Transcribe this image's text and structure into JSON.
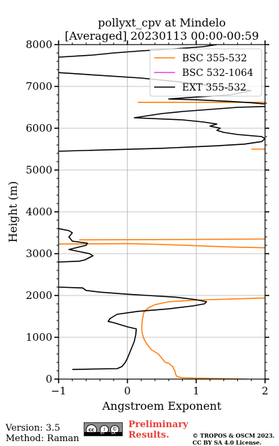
{
  "chart_data": {
    "type": "line",
    "title_line1": "pollyxt_cpv at Mindelo",
    "title_line2": "[Averaged] 20230113 00:00-00:59",
    "xlabel": "Angstroem Exponent",
    "ylabel": "Height (m)",
    "xlim": [
      -1,
      2
    ],
    "ylim": [
      0,
      8000
    ],
    "xticks": [
      -1,
      0,
      1,
      2
    ],
    "yticks": [
      0,
      1000,
      2000,
      3000,
      4000,
      5000,
      6000,
      7000,
      8000
    ],
    "grid": true,
    "legend_position": "top-right",
    "series": [
      {
        "name": "BSC 355-532",
        "color": "#ff7f0e",
        "segments": [
          [
            [
              1.75,
              0
            ],
            [
              1.2,
              15
            ],
            [
              0.8,
              30
            ],
            [
              0.72,
              60
            ],
            [
              0.7,
              120
            ],
            [
              0.69,
              200
            ],
            [
              0.67,
              250
            ],
            [
              0.66,
              300
            ],
            [
              0.62,
              350
            ],
            [
              0.6,
              380
            ],
            [
              0.55,
              400
            ],
            [
              0.5,
              500
            ],
            [
              0.45,
              600
            ],
            [
              0.35,
              700
            ],
            [
              0.3,
              800
            ],
            [
              0.26,
              900
            ],
            [
              0.23,
              1000
            ],
            [
              0.21,
              1150
            ],
            [
              0.21,
              1300
            ],
            [
              0.22,
              1450
            ],
            [
              0.24,
              1600
            ],
            [
              0.3,
              1700
            ],
            [
              0.4,
              1780
            ],
            [
              0.6,
              1850
            ],
            [
              0.9,
              1880
            ],
            [
              1.2,
              1900
            ],
            [
              1.6,
              1920
            ],
            [
              2.0,
              1940
            ]
          ],
          [
            [
              -1.0,
              3230
            ],
            [
              -0.4,
              3235
            ],
            [
              0.0,
              3240
            ],
            [
              0.5,
              3220
            ],
            [
              1.0,
              3190
            ],
            [
              1.5,
              3160
            ],
            [
              2.0,
              3140
            ]
          ],
          [
            [
              -0.7,
              3330
            ],
            [
              0.0,
              3335
            ],
            [
              1.0,
              3340
            ],
            [
              2.0,
              3350
            ]
          ],
          [
            [
              1.8,
              5500
            ],
            [
              1.9,
              5500
            ],
            [
              2.0,
              5500
            ]
          ],
          [
            [
              0.15,
              6620
            ],
            [
              0.6,
              6620
            ],
            [
              1.2,
              6620
            ],
            [
              1.8,
              6620
            ],
            [
              2.0,
              6620
            ]
          ]
        ]
      },
      {
        "name": "BSC 532-1064",
        "color": "#e040e0",
        "segments": []
      },
      {
        "name": "EXT 355-532",
        "color": "#000000",
        "segments": [
          [
            [
              -0.8,
              230
            ],
            [
              -0.5,
              240
            ],
            [
              -0.15,
              250
            ],
            [
              -0.08,
              300
            ],
            [
              -0.03,
              400
            ],
            [
              0.0,
              500
            ],
            [
              0.05,
              700
            ],
            [
              0.1,
              900
            ],
            [
              0.12,
              1050
            ],
            [
              0.13,
              1200
            ],
            [
              0.0,
              1250
            ],
            [
              -0.2,
              1350
            ],
            [
              -0.28,
              1380
            ],
            [
              -0.25,
              1450
            ],
            [
              -0.15,
              1550
            ],
            [
              0.15,
              1620
            ],
            [
              0.6,
              1680
            ],
            [
              0.95,
              1750
            ],
            [
              1.12,
              1800
            ],
            [
              1.15,
              1850
            ],
            [
              1.0,
              1900
            ],
            [
              0.7,
              1960
            ],
            [
              0.3,
              2000
            ],
            [
              0.0,
              2030
            ],
            [
              -0.4,
              2080
            ],
            [
              -0.6,
              2120
            ],
            [
              -0.65,
              2180
            ],
            [
              -1.0,
              2200
            ]
          ],
          [
            [
              -1.0,
              2800
            ],
            [
              -0.7,
              2820
            ],
            [
              -0.62,
              2850
            ],
            [
              -0.5,
              2950
            ],
            [
              -0.55,
              3000
            ],
            [
              -0.7,
              3050
            ],
            [
              -0.85,
              3100
            ],
            [
              -0.6,
              3200
            ],
            [
              -0.58,
              3250
            ],
            [
              -0.8,
              3300
            ],
            [
              -0.85,
              3400
            ],
            [
              -0.8,
              3500
            ],
            [
              -0.85,
              3550
            ],
            [
              -1.0,
              3600
            ]
          ],
          [
            [
              -1.0,
              5450
            ],
            [
              0.5,
              5520
            ],
            [
              1.3,
              5580
            ],
            [
              1.7,
              5620
            ],
            [
              1.95,
              5680
            ],
            [
              2.0,
              5750
            ],
            [
              1.95,
              5800
            ],
            [
              1.6,
              5850
            ],
            [
              1.4,
              5900
            ],
            [
              1.3,
              5950
            ],
            [
              1.35,
              6000
            ],
            [
              1.2,
              6050
            ],
            [
              1.3,
              6100
            ],
            [
              1.1,
              6150
            ],
            [
              0.8,
              6200
            ],
            [
              0.1,
              6250
            ],
            [
              0.3,
              6300
            ],
            [
              0.5,
              6350
            ],
            [
              0.8,
              6400
            ],
            [
              1.2,
              6450
            ],
            [
              1.6,
              6500
            ],
            [
              2.0,
              6520
            ]
          ],
          [
            [
              2.0,
              6580
            ],
            [
              1.8,
              6610
            ],
            [
              1.5,
              6640
            ],
            [
              1.0,
              6680
            ],
            [
              0.6,
              6700
            ],
            [
              1.5,
              6800
            ],
            [
              1.8,
              6900
            ],
            [
              1.3,
              7000
            ],
            [
              0.8,
              7100
            ],
            [
              0.2,
              7200
            ],
            [
              -1.0,
              7330
            ]
          ],
          [
            [
              -1.0,
              7700
            ],
            [
              -0.5,
              7750
            ],
            [
              -0.2,
              7800
            ],
            [
              0.2,
              7850
            ],
            [
              0.7,
              7900
            ],
            [
              1.1,
              7950
            ],
            [
              1.3,
              8000
            ]
          ]
        ]
      }
    ]
  },
  "footer": {
    "version": "Version: 3.5",
    "method": "Method: Raman",
    "preliminary_line1": "Preliminary",
    "preliminary_line2": "Results.",
    "copyright_line1": "© TROPOS & OSCM 2023.",
    "copyright_line2": "CC BY SA 4.0 License."
  },
  "badge": {
    "cc": "cc",
    "by": "i",
    "sa": "©",
    "strip_by": "BY",
    "strip_sa": "SA"
  }
}
